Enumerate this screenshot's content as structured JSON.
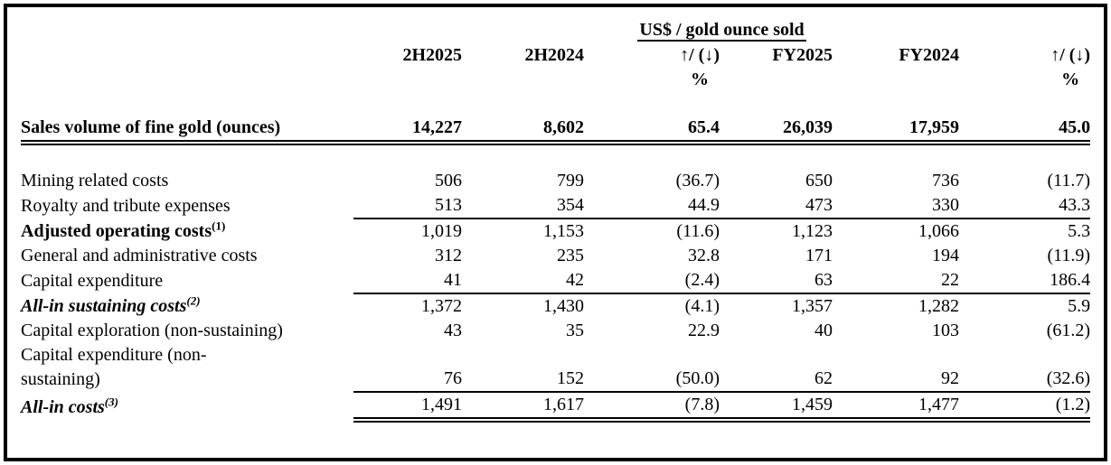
{
  "table": {
    "unit_header": "US$ / gold ounce sold",
    "columns": [
      {
        "label": "2H2025",
        "sub": ""
      },
      {
        "label": "2H2024",
        "sub": ""
      },
      {
        "label": "↑/ (↓)",
        "sub": "%"
      },
      {
        "label": "FY2025",
        "sub": ""
      },
      {
        "label": "FY2024",
        "sub": ""
      },
      {
        "label": "↑/ (↓)",
        "sub": "%"
      }
    ],
    "rows": [
      {
        "label": "Sales volume of fine gold (ounces)",
        "sup": "",
        "values": [
          "14,227",
          "8,602",
          "65.4",
          "26,039",
          "17,959",
          "45.0"
        ]
      },
      {
        "label": "Mining related costs",
        "sup": "",
        "values": [
          "506",
          "799",
          "(36.7)",
          "650",
          "736",
          "(11.7)"
        ]
      },
      {
        "label": "Royalty and tribute expenses",
        "sup": "",
        "values": [
          "513",
          "354",
          "44.9",
          "473",
          "330",
          "43.3"
        ]
      },
      {
        "label": "Adjusted operating costs",
        "sup": "(1)",
        "values": [
          "1,019",
          "1,153",
          "(11.6)",
          "1,123",
          "1,066",
          "5.3"
        ]
      },
      {
        "label": "General and administrative costs",
        "sup": "",
        "values": [
          "312",
          "235",
          "32.8",
          "171",
          "194",
          "(11.9)"
        ]
      },
      {
        "label": "Capital expenditure",
        "sup": "",
        "values": [
          "41",
          "42",
          "(2.4)",
          "63",
          "22",
          "186.4"
        ]
      },
      {
        "label": "All-in sustaining costs",
        "sup": "(2)",
        "values": [
          "1,372",
          "1,430",
          "(4.1)",
          "1,357",
          "1,282",
          "5.9"
        ]
      },
      {
        "label": "Capital exploration (non-sustaining)",
        "sup": "",
        "values": [
          "43",
          "35",
          "22.9",
          "40",
          "103",
          "(61.2)"
        ]
      },
      {
        "label": "Capital expenditure (non-\nsustaining)",
        "sup": "",
        "values": [
          "76",
          "152",
          "(50.0)",
          "62",
          "92",
          "(32.6)"
        ]
      },
      {
        "label": "All-in costs",
        "sup": "(3)",
        "values": [
          "1,491",
          "1,617",
          "(7.8)",
          "1,459",
          "1,477",
          "(1.2)"
        ]
      }
    ]
  }
}
